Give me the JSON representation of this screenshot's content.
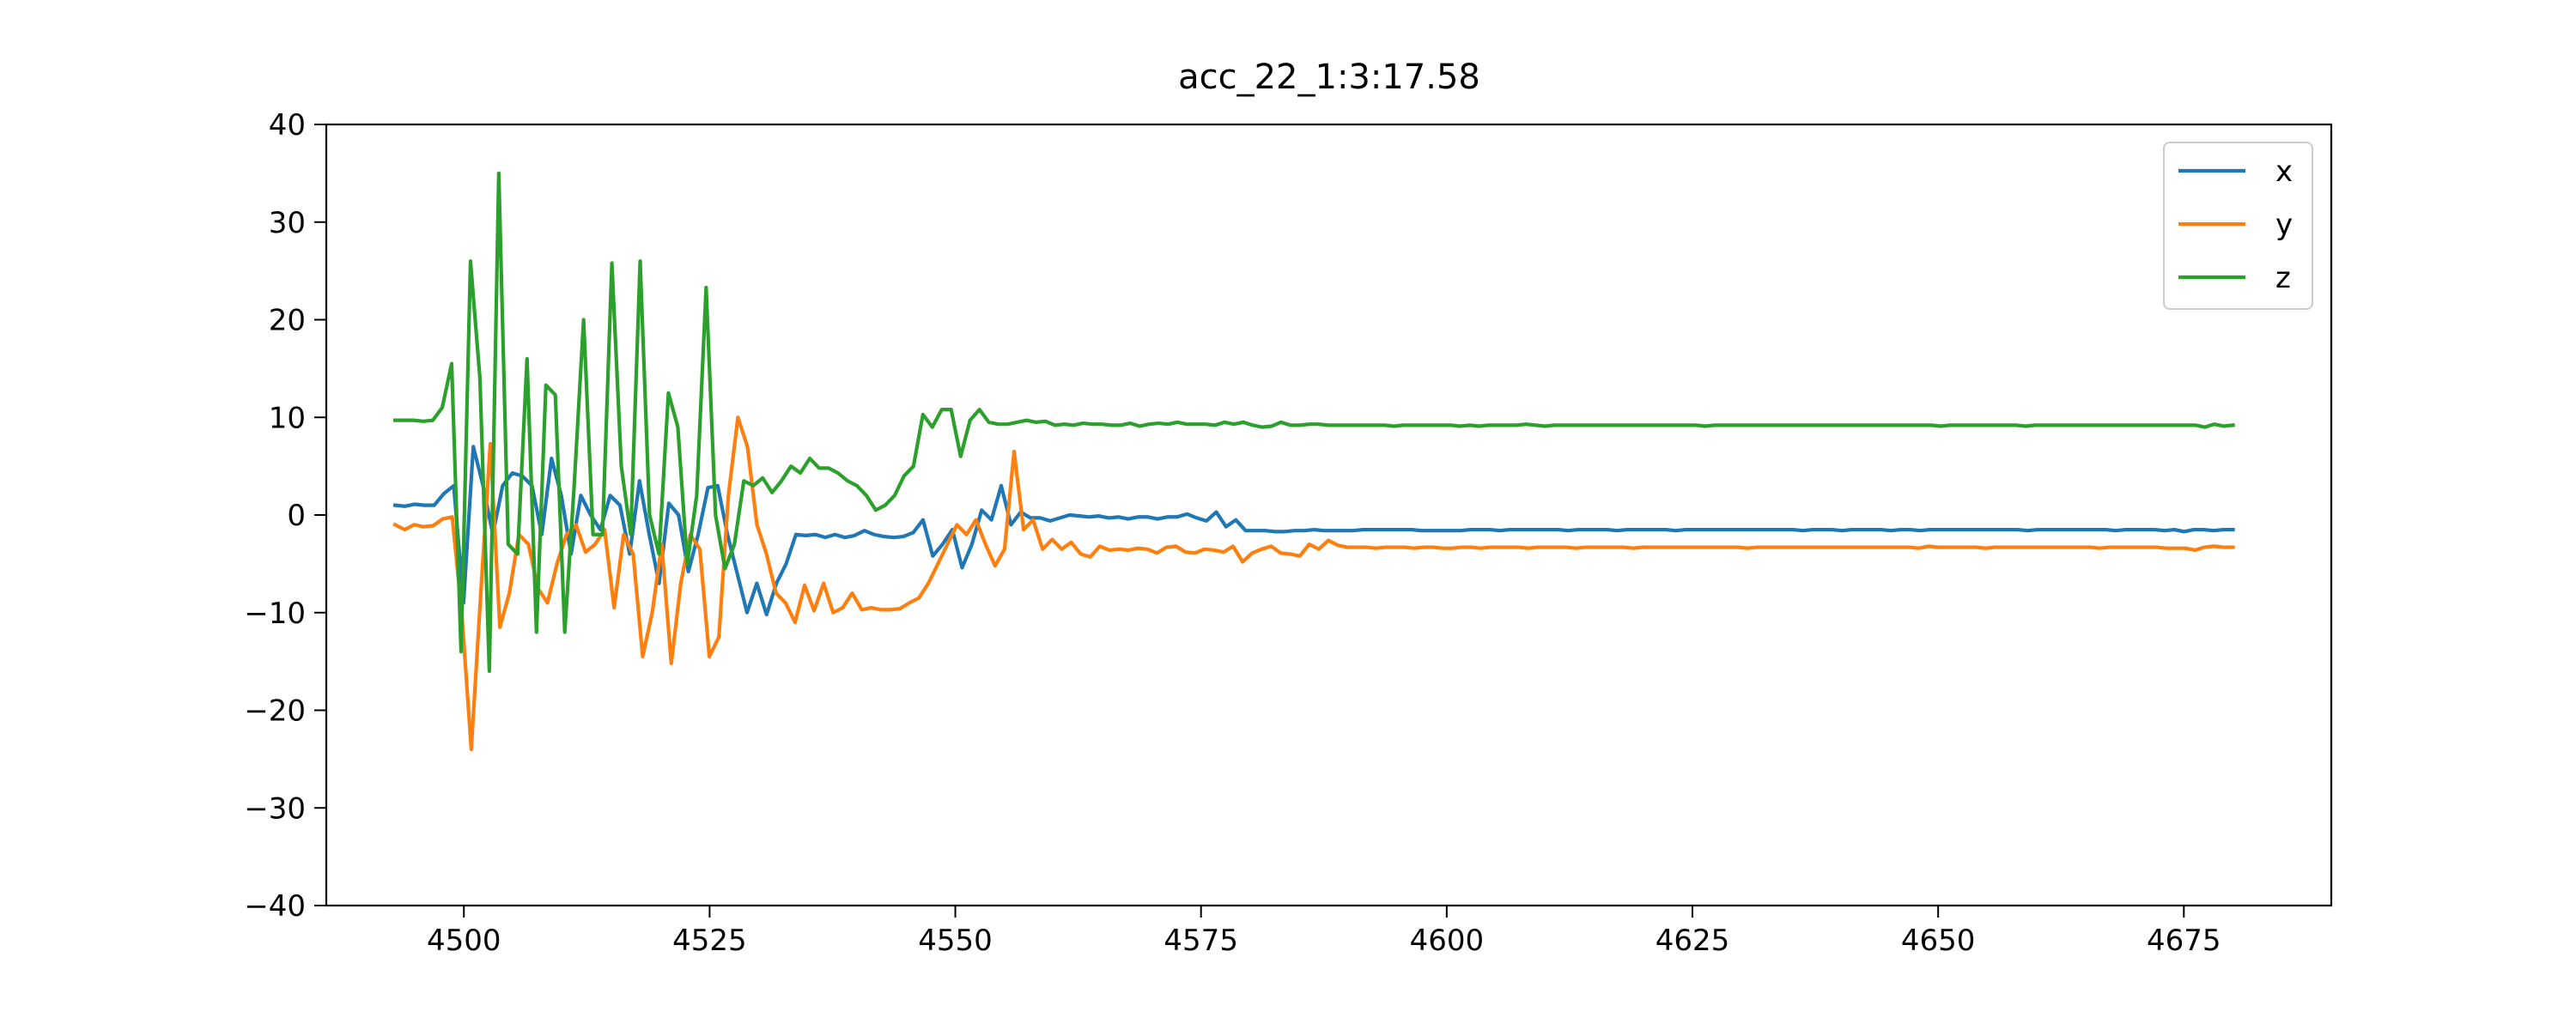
{
  "chart_data": {
    "type": "line",
    "title": "acc_22_1:3:17.58",
    "xlabel": "",
    "ylabel": "",
    "xlim": [
      4486,
      4690
    ],
    "ylim": [
      -40,
      40
    ],
    "xticks": [
      4500,
      4525,
      4550,
      4575,
      4600,
      4625,
      4650,
      4675
    ],
    "yticks": [
      -40,
      -30,
      -20,
      -10,
      0,
      10,
      20,
      30,
      40
    ],
    "grid": false,
    "legend_position": "top-right",
    "colors": {
      "x": "#1f77b4",
      "y": "#ff7f0e",
      "z": "#2ca02c"
    },
    "x_start": 4493,
    "x_end": 4680,
    "series": [
      {
        "name": "x",
        "values": [
          1.0,
          0.9,
          1.1,
          1.0,
          1.0,
          2.2,
          3.0,
          -9.0,
          7.0,
          3.0,
          -2.0,
          3.0,
          4.3,
          4.0,
          3.0,
          -2.0,
          5.8,
          2.0,
          -4.0,
          2.0,
          0.0,
          -1.5,
          2.0,
          1.0,
          -4.0,
          3.5,
          -2.0,
          -7.0,
          1.2,
          0.0,
          -5.8,
          -2.0,
          2.8,
          3.0,
          -2.0,
          -6.0,
          -10.0,
          -7.0,
          -10.2,
          -7.0,
          -5.0,
          -2.0,
          -2.1,
          -2.0,
          -2.3,
          -2.0,
          -2.3,
          -2.1,
          -1.6,
          -2.0,
          -2.2,
          -2.3,
          -2.2,
          -1.8,
          -0.5,
          -4.2,
          -3.0,
          -1.5,
          -5.4,
          -3.0,
          0.5,
          -0.5,
          3.0,
          -1.0,
          0.3,
          -0.3,
          -0.3,
          -0.6,
          -0.3,
          0.0,
          -0.1,
          -0.2,
          -0.1,
          -0.3,
          -0.2,
          -0.4,
          -0.2,
          -0.2,
          -0.4,
          -0.2,
          -0.2,
          0.1,
          -0.3,
          -0.6,
          0.3,
          -1.2,
          -0.5,
          -1.6,
          -1.6,
          -1.6,
          -1.7,
          -1.7,
          -1.6,
          -1.6,
          -1.5,
          -1.6,
          -1.6,
          -1.6,
          -1.6,
          -1.5,
          -1.5,
          -1.5,
          -1.5,
          -1.5,
          -1.5,
          -1.6,
          -1.6,
          -1.6,
          -1.6,
          -1.6,
          -1.5,
          -1.5,
          -1.5,
          -1.6,
          -1.5,
          -1.5,
          -1.5,
          -1.5,
          -1.5,
          -1.5,
          -1.6,
          -1.5,
          -1.5,
          -1.5,
          -1.5,
          -1.6,
          -1.5,
          -1.5,
          -1.5,
          -1.5,
          -1.5,
          -1.6,
          -1.5,
          -1.5,
          -1.5,
          -1.5,
          -1.5,
          -1.5,
          -1.5,
          -1.5,
          -1.5,
          -1.5,
          -1.5,
          -1.5,
          -1.6,
          -1.5,
          -1.5,
          -1.5,
          -1.6,
          -1.5,
          -1.5,
          -1.5,
          -1.5,
          -1.6,
          -1.5,
          -1.5,
          -1.6,
          -1.5,
          -1.5,
          -1.5,
          -1.5,
          -1.5,
          -1.5,
          -1.5,
          -1.5,
          -1.5,
          -1.5,
          -1.6,
          -1.5,
          -1.5,
          -1.5,
          -1.5,
          -1.5,
          -1.5,
          -1.5,
          -1.5,
          -1.6,
          -1.5,
          -1.5,
          -1.5,
          -1.5,
          -1.6,
          -1.5,
          -1.7,
          -1.5,
          -1.5,
          -1.6,
          -1.5,
          -1.5
        ]
      },
      {
        "name": "y",
        "values": [
          -1.0,
          -1.5,
          -1.0,
          -1.2,
          -1.1,
          -0.4,
          -0.2,
          -10.0,
          -24.0,
          -8.0,
          7.3,
          -11.5,
          -8.0,
          -2.0,
          -3.0,
          -7.5,
          -9.0,
          -5.0,
          -2.0,
          -1.0,
          -3.8,
          -3.0,
          -1.5,
          -9.5,
          -2.0,
          -4.0,
          -14.5,
          -10.0,
          -3.0,
          -15.2,
          -7.0,
          -2.0,
          -3.5,
          -14.5,
          -12.5,
          2.0,
          10.0,
          7.0,
          -1.0,
          -4.0,
          -8.0,
          -9.0,
          -11.0,
          -7.2,
          -9.8,
          -7.0,
          -10.0,
          -9.5,
          -8.0,
          -9.7,
          -9.5,
          -9.7,
          -9.7,
          -9.6,
          -9.0,
          -8.5,
          -7.0,
          -5.0,
          -3.0,
          -1.0,
          -2.0,
          -0.5,
          -3.0,
          -5.2,
          -3.5,
          6.5,
          -1.5,
          -0.5,
          -3.5,
          -2.5,
          -3.5,
          -2.8,
          -4.0,
          -4.3,
          -3.2,
          -3.6,
          -3.5,
          -3.6,
          -3.4,
          -3.5,
          -3.9,
          -3.3,
          -3.2,
          -3.8,
          -3.9,
          -3.5,
          -3.6,
          -3.8,
          -3.2,
          -4.8,
          -3.9,
          -3.5,
          -3.2,
          -3.9,
          -4.0,
          -4.2,
          -3.0,
          -3.5,
          -2.6,
          -3.1,
          -3.3,
          -3.3,
          -3.3,
          -3.4,
          -3.3,
          -3.3,
          -3.3,
          -3.4,
          -3.3,
          -3.3,
          -3.4,
          -3.4,
          -3.3,
          -3.3,
          -3.4,
          -3.3,
          -3.3,
          -3.3,
          -3.3,
          -3.4,
          -3.3,
          -3.3,
          -3.3,
          -3.3,
          -3.4,
          -3.3,
          -3.3,
          -3.3,
          -3.3,
          -3.3,
          -3.4,
          -3.3,
          -3.3,
          -3.3,
          -3.3,
          -3.3,
          -3.3,
          -3.3,
          -3.3,
          -3.3,
          -3.3,
          -3.3,
          -3.4,
          -3.3,
          -3.3,
          -3.3,
          -3.3,
          -3.3,
          -3.3,
          -3.3,
          -3.3,
          -3.3,
          -3.3,
          -3.3,
          -3.3,
          -3.3,
          -3.3,
          -3.3,
          -3.3,
          -3.3,
          -3.4,
          -3.2,
          -3.3,
          -3.3,
          -3.3,
          -3.3,
          -3.3,
          -3.4,
          -3.3,
          -3.3,
          -3.3,
          -3.3,
          -3.3,
          -3.3,
          -3.3,
          -3.3,
          -3.3,
          -3.3,
          -3.3,
          -3.4,
          -3.3,
          -3.3,
          -3.3,
          -3.3,
          -3.3,
          -3.3,
          -3.4,
          -3.4,
          -3.4,
          -3.6,
          -3.3,
          -3.2,
          -3.3,
          -3.3
        ]
      },
      {
        "name": "z",
        "values": [
          9.7,
          9.7,
          9.7,
          9.6,
          9.7,
          11.0,
          15.5,
          -14.0,
          26.0,
          14.0,
          -16.0,
          35.0,
          -3.0,
          -4.0,
          16.0,
          -12.0,
          13.3,
          12.3,
          -12.0,
          3.0,
          20.0,
          -2.0,
          -2.0,
          25.8,
          5.0,
          -2.0,
          26.0,
          0.0,
          -4.0,
          12.5,
          9.0,
          -5.0,
          2.0,
          23.3,
          0.0,
          -5.5,
          -3.0,
          3.5,
          3.0,
          3.8,
          2.3,
          3.5,
          5.0,
          4.3,
          5.8,
          4.8,
          4.8,
          4.3,
          3.5,
          3.0,
          2.0,
          0.5,
          1.0,
          2.0,
          4.0,
          5.0,
          10.3,
          9.0,
          10.8,
          10.8,
          6.0,
          9.7,
          10.8,
          9.5,
          9.3,
          9.3,
          9.5,
          9.7,
          9.5,
          9.6,
          9.2,
          9.3,
          9.2,
          9.4,
          9.3,
          9.3,
          9.2,
          9.2,
          9.4,
          9.1,
          9.3,
          9.4,
          9.3,
          9.5,
          9.3,
          9.3,
          9.3,
          9.2,
          9.5,
          9.3,
          9.5,
          9.2,
          9.0,
          9.1,
          9.5,
          9.2,
          9.2,
          9.3,
          9.3,
          9.2,
          9.2,
          9.2,
          9.2,
          9.2,
          9.2,
          9.2,
          9.1,
          9.2,
          9.2,
          9.2,
          9.2,
          9.2,
          9.2,
          9.1,
          9.2,
          9.1,
          9.2,
          9.2,
          9.2,
          9.2,
          9.3,
          9.2,
          9.1,
          9.2,
          9.2,
          9.2,
          9.2,
          9.2,
          9.2,
          9.2,
          9.2,
          9.2,
          9.2,
          9.2,
          9.2,
          9.2,
          9.2,
          9.2,
          9.2,
          9.1,
          9.2,
          9.2,
          9.2,
          9.2,
          9.2,
          9.2,
          9.2,
          9.2,
          9.2,
          9.2,
          9.2,
          9.2,
          9.2,
          9.2,
          9.2,
          9.2,
          9.2,
          9.2,
          9.2,
          9.2,
          9.2,
          9.2,
          9.2,
          9.2,
          9.1,
          9.2,
          9.2,
          9.2,
          9.2,
          9.2,
          9.2,
          9.2,
          9.2,
          9.1,
          9.2,
          9.2,
          9.2,
          9.2,
          9.2,
          9.2,
          9.2,
          9.2,
          9.2,
          9.2,
          9.2,
          9.2,
          9.2,
          9.2,
          9.2,
          9.2,
          9.2,
          9.2,
          9.0,
          9.3,
          9.1,
          9.2
        ]
      }
    ]
  }
}
